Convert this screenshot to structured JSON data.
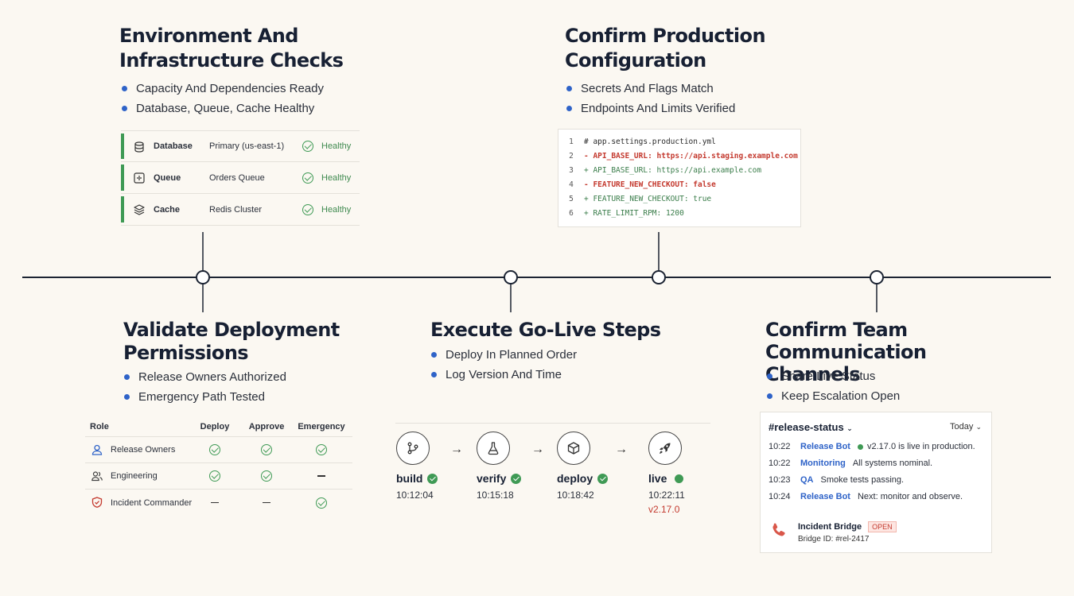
{
  "sections": {
    "infra": {
      "title": [
        "Environment And",
        "Infrastructure Checks"
      ],
      "bullets": [
        "Capacity And Dependencies Ready",
        "Database, Queue, Cache Healthy"
      ],
      "rows": [
        {
          "icon": "database-icon",
          "name": "Database",
          "detail": "Primary (us-east-1)",
          "status": "Healthy"
        },
        {
          "icon": "queue-icon",
          "name": "Queue",
          "detail": "Orders Queue",
          "status": "Healthy"
        },
        {
          "icon": "cache-icon",
          "name": "Cache",
          "detail": "Redis Cluster",
          "status": "Healthy"
        }
      ]
    },
    "config": {
      "title": [
        "Confirm Production",
        "Configuration"
      ],
      "bullets": [
        "Secrets And Flags Match",
        "Endpoints And Limits Verified"
      ],
      "code": [
        {
          "n": "1",
          "kind": "plain",
          "text": "# app.settings.production.yml"
        },
        {
          "n": "2",
          "kind": "del",
          "text": "- API_BASE_URL: https://api.staging.example.com"
        },
        {
          "n": "3",
          "kind": "add",
          "text": "+ API_BASE_URL: https://api.example.com"
        },
        {
          "n": "4",
          "kind": "del",
          "text": "- FEATURE_NEW_CHECKOUT: false"
        },
        {
          "n": "5",
          "kind": "add",
          "text": "+ FEATURE_NEW_CHECKOUT: true"
        },
        {
          "n": "6",
          "kind": "add",
          "text": "+ RATE_LIMIT_RPM: 1200"
        }
      ]
    },
    "permissions": {
      "title": [
        "Validate Deployment",
        "Permissions"
      ],
      "bullets": [
        "Release Owners Authorized",
        "Emergency Path Tested"
      ],
      "headers": {
        "role": "Role",
        "deploy": "Deploy",
        "approve": "Approve",
        "emergency": "Emergency"
      },
      "rows": [
        {
          "role": "Release Owners",
          "icon": "user-icon",
          "deploy": true,
          "approve": true,
          "emergency": true
        },
        {
          "role": "Engineering",
          "icon": "users-icon",
          "deploy": true,
          "approve": true,
          "emergency": false
        },
        {
          "role": "Incident Commander",
          "icon": "shield-icon",
          "deploy": false,
          "approve": false,
          "emergency": true
        }
      ]
    },
    "golive": {
      "title": [
        "Execute Go-Live Steps"
      ],
      "bullets": [
        "Deploy In Planned Order",
        "Log Version And Time"
      ],
      "stages": [
        {
          "icon": "branch-icon",
          "label": "build",
          "time": "10:12:04",
          "status": "done"
        },
        {
          "icon": "flask-icon",
          "label": "verify",
          "time": "10:15:18",
          "status": "done"
        },
        {
          "icon": "box-icon",
          "label": "deploy",
          "time": "10:18:42",
          "status": "done"
        },
        {
          "icon": "rocket-icon",
          "label": "live",
          "time": "10:22:11",
          "status": "live",
          "version": "v2.17.0"
        }
      ],
      "arrow": "→"
    },
    "comms": {
      "title": [
        "Confirm Team Communication",
        "Channels"
      ],
      "bullets": [
        "Share Live Status",
        "Keep Escalation Open"
      ],
      "channel": "#release-status",
      "day": "Today",
      "messages": [
        {
          "time": "10:22",
          "who": "Release Bot",
          "text": "v2.17.0 is live in production.",
          "dot": true
        },
        {
          "time": "10:22",
          "who": "Monitoring",
          "text": "All systems nominal.",
          "dot": false
        },
        {
          "time": "10:23",
          "who": "QA",
          "text": "Smoke tests passing.",
          "dot": false
        },
        {
          "time": "10:24",
          "who": "Release Bot",
          "text": "Next: monitor and observe.",
          "dot": false
        }
      ],
      "bridge": {
        "title": "Incident Bridge",
        "badge": "OPEN",
        "id": "Bridge ID: #rel-2417"
      }
    }
  },
  "colors": {
    "accent": "#2f63c8",
    "success": "#3f9a55",
    "danger": "#c43a2f",
    "timeline": "#1c2433"
  }
}
